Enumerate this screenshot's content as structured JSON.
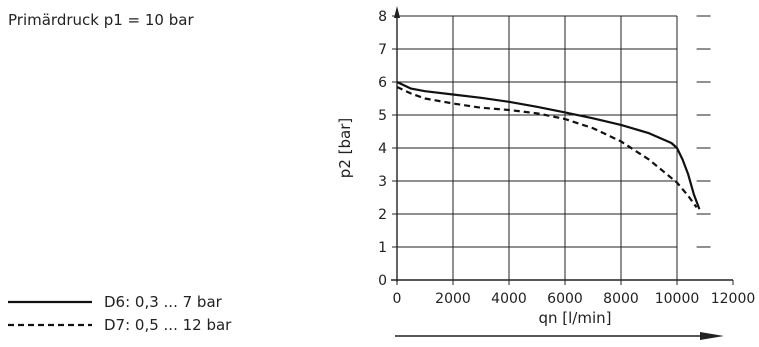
{
  "note": "Primärdruck p1 = 10 bar",
  "chart_data": {
    "type": "line",
    "title": "",
    "xlabel": "qn [l/min]",
    "ylabel": "p2 [bar]",
    "xlim": [
      0,
      12000
    ],
    "ylim": [
      0,
      8
    ],
    "xticks": [
      "0",
      "2000",
      "4000",
      "6000",
      "8000",
      "10000",
      "12000"
    ],
    "yticks": [
      "0",
      "1",
      "2",
      "3",
      "4",
      "5",
      "6",
      "7",
      "8"
    ],
    "grid": true,
    "legend_position": "bottom-left",
    "series": [
      {
        "name": "D6: 0,3 ... 7 bar",
        "style": "solid",
        "x": [
          0,
          500,
          1000,
          2000,
          3000,
          4000,
          5000,
          6000,
          7000,
          8000,
          9000,
          9800,
          10000,
          10200,
          10400,
          10600,
          10800
        ],
        "y": [
          6.0,
          5.8,
          5.72,
          5.62,
          5.52,
          5.4,
          5.25,
          5.08,
          4.9,
          4.7,
          4.45,
          4.15,
          4.0,
          3.65,
          3.2,
          2.6,
          2.15
        ]
      },
      {
        "name": "D7: 0,5 ... 12 bar",
        "style": "dashed",
        "x": [
          0,
          500,
          1000,
          2000,
          3000,
          4000,
          5000,
          6000,
          7000,
          8000,
          9000,
          10000,
          10400,
          10700
        ],
        "y": [
          5.85,
          5.65,
          5.5,
          5.35,
          5.22,
          5.15,
          5.05,
          4.88,
          4.6,
          4.2,
          3.65,
          2.95,
          2.55,
          2.2
        ]
      }
    ]
  }
}
